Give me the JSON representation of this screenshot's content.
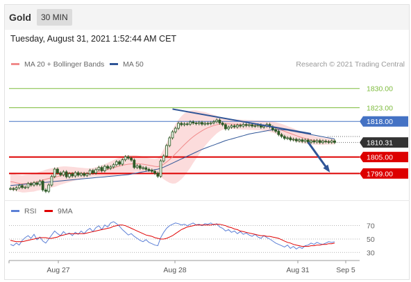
{
  "header": {
    "symbol": "Gold",
    "interval": "30 MIN"
  },
  "datetime": "Tuesday, August 31, 2021 1:52:44 AM CET",
  "legend": {
    "main": [
      {
        "label": "MA 20 + Bollinger Bands",
        "color": "#f08a8a"
      },
      {
        "label": "MA 50",
        "color": "#2f5597"
      }
    ],
    "osc": [
      {
        "label": "RSI",
        "color": "#5b7fd6"
      },
      {
        "label": "9MA",
        "color": "#e00000"
      }
    ]
  },
  "credit": "Research © 2021 Trading Central",
  "colors": {
    "green": "#7dbb3c",
    "blue": "#4472c4",
    "red": "#dd0000",
    "dark": "#333333",
    "band": "#fbd0d0",
    "candle": "#3c763d"
  },
  "chart_data": {
    "type": "candlestick",
    "x_ticks": [
      "Aug 27",
      "Aug 28",
      "Aug 31",
      "Sep 5"
    ],
    "ylim": [
      1789.5,
      1836.0
    ],
    "price": [
      1793.5,
      1793.2,
      1793.8,
      1794.6,
      1793.9,
      1794.0,
      1795.3,
      1794.8,
      1795.6,
      1795.0,
      1796.2,
      1793.0,
      1792.5,
      1794.8,
      1797.9,
      1800.6,
      1799.2,
      1798.5,
      1799.6,
      1797.8,
      1798.9,
      1798.1,
      1799.3,
      1798.4,
      1799.0,
      1798.3,
      1798.9,
      1800.1,
      1799.2,
      1800.4,
      1801.2,
      1800.0,
      1801.6,
      1800.9,
      1801.4,
      1802.2,
      1803.3,
      1802.4,
      1804.0,
      1805.1,
      1804.6,
      1803.9,
      1801.2,
      1801.8,
      1800.9,
      1801.1,
      1800.5,
      1800.2,
      1799.8,
      1799.1,
      1798.0,
      1803.6,
      1805.4,
      1809.2,
      1812.0,
      1814.2,
      1815.5,
      1817.3,
      1816.8,
      1817.1,
      1817.0,
      1817.8,
      1817.4,
      1817.2,
      1817.6,
      1817.0,
      1817.3,
      1817.2,
      1817.5,
      1817.9,
      1818.5,
      1817.4,
      1816.8,
      1815.3,
      1815.9,
      1816.4,
      1816.0,
      1816.6,
      1816.3,
      1816.9,
      1816.5,
      1816.8,
      1816.3,
      1816.4,
      1816.7,
      1815.9,
      1816.3,
      1816.9,
      1816.0,
      1815.0,
      1814.4,
      1813.2,
      1812.5,
      1811.8,
      1812.0,
      1811.3,
      1811.5,
      1810.9,
      1811.3,
      1810.7,
      1811.2,
      1810.4,
      1810.9,
      1810.5,
      1811.0,
      1810.3,
      1810.8,
      1810.6,
      1810.4,
      1810.9,
      1810.31
    ],
    "ma20": [
      1796.0,
      1795.9,
      1795.6,
      1795.4,
      1795.2,
      1795.3,
      1795.4,
      1795.5,
      1795.7,
      1796.0,
      1796.3,
      1796.6,
      1796.9,
      1797.2,
      1797.4,
      1797.6,
      1797.9,
      1798.2,
      1798.4,
      1798.6,
      1798.7,
      1798.8,
      1798.9,
      1799.0,
      1799.1,
      1799.2,
      1799.2,
      1799.3,
      1799.4,
      1799.6,
      1799.8,
      1800.0,
      1800.2,
      1800.5,
      1800.8,
      1801.1,
      1801.4,
      1801.7,
      1802.0,
      1802.2,
      1802.4,
      1802.5,
      1802.6,
      1802.6,
      1802.5,
      1802.4,
      1802.2,
      1802.0,
      1801.8,
      1801.6,
      1801.5,
      1801.8,
      1802.4,
      1803.2,
      1804.1,
      1805.1,
      1806.2,
      1807.3,
      1808.4,
      1809.5,
      1810.5,
      1811.5,
      1812.4,
      1813.2,
      1813.9,
      1814.6,
      1815.2,
      1815.7,
      1816.1,
      1816.5,
      1816.8,
      1817.0,
      1817.1,
      1817.1,
      1817.1,
      1817.0,
      1817.0,
      1816.9,
      1816.9,
      1816.8,
      1816.8,
      1816.7,
      1816.7,
      1816.6,
      1816.6,
      1816.5,
      1816.4,
      1816.3,
      1816.1,
      1815.9,
      1815.6,
      1815.2,
      1814.8,
      1814.4,
      1814.0,
      1813.6,
      1813.2,
      1812.8,
      1812.4,
      1812.1,
      1811.8,
      1811.5,
      1811.3,
      1811.1,
      1811.0,
      1810.9,
      1810.8,
      1810.7,
      1810.7,
      1810.6,
      1810.6
    ],
    "bb_width": [
      3.0,
      3.0,
      3.0,
      3.1,
      3.1,
      3.2,
      3.2,
      3.2,
      3.3,
      3.3,
      3.4,
      3.4,
      3.5,
      3.5,
      3.5,
      3.5,
      3.4,
      3.3,
      3.2,
      3.0,
      2.8,
      2.6,
      2.4,
      2.2,
      2.0,
      1.8,
      1.7,
      1.6,
      1.6,
      1.7,
      1.8,
      2.0,
      2.2,
      2.4,
      2.6,
      2.8,
      3.0,
      3.1,
      3.2,
      3.3,
      3.3,
      3.2,
      3.1,
      3.0,
      2.9,
      2.8,
      2.7,
      2.6,
      2.6,
      2.7,
      3.0,
      4.0,
      5.5,
      7.0,
      8.5,
      9.8,
      10.8,
      11.3,
      11.5,
      11.4,
      11.0,
      10.4,
      9.6,
      8.8,
      7.9,
      7.0,
      6.2,
      5.4,
      4.6,
      3.9,
      3.2,
      2.6,
      2.1,
      1.9,
      1.8,
      1.8,
      1.8,
      1.8,
      1.8,
      1.8,
      1.8,
      1.8,
      1.8,
      1.8,
      1.8,
      1.8,
      1.8,
      1.8,
      1.9,
      2.0,
      2.1,
      2.2,
      2.3,
      2.3,
      2.3,
      2.3,
      2.3,
      2.2,
      2.1,
      2.0,
      1.9,
      1.8,
      1.7,
      1.6,
      1.5,
      1.4,
      1.3,
      1.2,
      1.1,
      1.0,
      1.0
    ],
    "ma50": [
      1794.6,
      1794.7,
      1794.8,
      1794.9,
      1795.0,
      1795.1,
      1795.2,
      1795.3,
      1795.4,
      1795.5,
      1795.6,
      1795.7,
      1795.8,
      1795.9,
      1796.0,
      1796.1,
      1796.2,
      1796.3,
      1796.4,
      1796.5,
      1796.6,
      1796.7,
      1796.8,
      1796.9,
      1797.0,
      1797.1,
      1797.2,
      1797.3,
      1797.4,
      1797.5,
      1797.6,
      1797.7,
      1797.8,
      1797.9,
      1798.0,
      1798.1,
      1798.2,
      1798.3,
      1798.4,
      1798.5,
      1798.6,
      1798.8,
      1799.0,
      1799.2,
      1799.4,
      1799.6,
      1799.8,
      1800.0,
      1800.2,
      1800.4,
      1800.6,
      1800.9,
      1801.3,
      1801.8,
      1802.3,
      1802.8,
      1803.3,
      1803.8,
      1804.3,
      1804.8,
      1805.3,
      1805.8,
      1806.3,
      1806.8,
      1807.3,
      1807.8,
      1808.2,
      1808.6,
      1809.0,
      1809.4,
      1809.8,
      1810.2,
      1810.6,
      1811.0,
      1811.3,
      1811.6,
      1811.9,
      1812.2,
      1812.5,
      1812.8,
      1813.1,
      1813.4,
      1813.6,
      1813.8,
      1814.0,
      1814.2,
      1814.4,
      1814.6,
      1814.8,
      1814.9,
      1815.0,
      1815.0,
      1815.0,
      1814.9,
      1814.8,
      1814.6,
      1814.4,
      1814.2,
      1814.0,
      1813.8,
      1813.6,
      1813.4,
      1813.2,
      1813.0,
      1812.8,
      1812.6,
      1812.4,
      1812.2,
      1812.0,
      1811.8,
      1811.6
    ],
    "levels": [
      {
        "value": 1830.0,
        "label": "1830.00",
        "style": "green"
      },
      {
        "value": 1823.0,
        "label": "1823.00",
        "style": "green"
      },
      {
        "value": 1818.0,
        "label": "1818.00",
        "style": "blue"
      },
      {
        "value": 1810.31,
        "label": "1810.31",
        "style": "dark"
      },
      {
        "value": 1805.0,
        "label": "1805.00",
        "style": "red"
      },
      {
        "value": 1799.0,
        "label": "1799.00",
        "style": "red"
      }
    ],
    "trendline": [
      [
        55,
        1822.5
      ],
      [
        102,
        1813.5
      ]
    ],
    "arrow": [
      [
        101,
        1810.4
      ],
      [
        108,
        1800.0
      ]
    ],
    "rsi": {
      "ylim": [
        22,
        80
      ],
      "ticks": [
        70,
        50,
        30
      ],
      "rsi": [
        42,
        40,
        44,
        41,
        48,
        52,
        55,
        51,
        57,
        49,
        53,
        47,
        44,
        50,
        56,
        62,
        58,
        55,
        61,
        57,
        59,
        55,
        60,
        57,
        62,
        58,
        63,
        66,
        61,
        67,
        70,
        64,
        71,
        68,
        74,
        76,
        73,
        69,
        64,
        60,
        56,
        58,
        54,
        51,
        48,
        46,
        49,
        45,
        43,
        41,
        40,
        52,
        60,
        66,
        70,
        72,
        74,
        73,
        71,
        72,
        70,
        72,
        74,
        71,
        72,
        70,
        73,
        72,
        74,
        71,
        73,
        68,
        66,
        62,
        64,
        60,
        62,
        58,
        61,
        57,
        59,
        56,
        54,
        57,
        53,
        51,
        55,
        52,
        50,
        47,
        44,
        42,
        40,
        38,
        41,
        36,
        39,
        35,
        38,
        36,
        40,
        41,
        44,
        42,
        45,
        43,
        42,
        44,
        46,
        45,
        46
      ],
      "ma": [
        48,
        47,
        46,
        46,
        46,
        47,
        48,
        49,
        50,
        51,
        52,
        52,
        52,
        51,
        51,
        52,
        53,
        55,
        56,
        57,
        58,
        58,
        58,
        58,
        58,
        58,
        59,
        60,
        61,
        62,
        63,
        64,
        65,
        66,
        67,
        69,
        70,
        71,
        71,
        70,
        68,
        66,
        64,
        62,
        60,
        58,
        56,
        55,
        54,
        52,
        51,
        50,
        50,
        51,
        53,
        55,
        58,
        61,
        64,
        66,
        68,
        69,
        70,
        71,
        71,
        71,
        71,
        71,
        71,
        72,
        72,
        72,
        71,
        70,
        68,
        67,
        65,
        64,
        62,
        61,
        60,
        59,
        58,
        57,
        56,
        55,
        55,
        54,
        54,
        53,
        52,
        51,
        49,
        47,
        45,
        44,
        42,
        41,
        40,
        39,
        39,
        39,
        40,
        40,
        41,
        41,
        42,
        42,
        43,
        43,
        44
      ]
    }
  }
}
